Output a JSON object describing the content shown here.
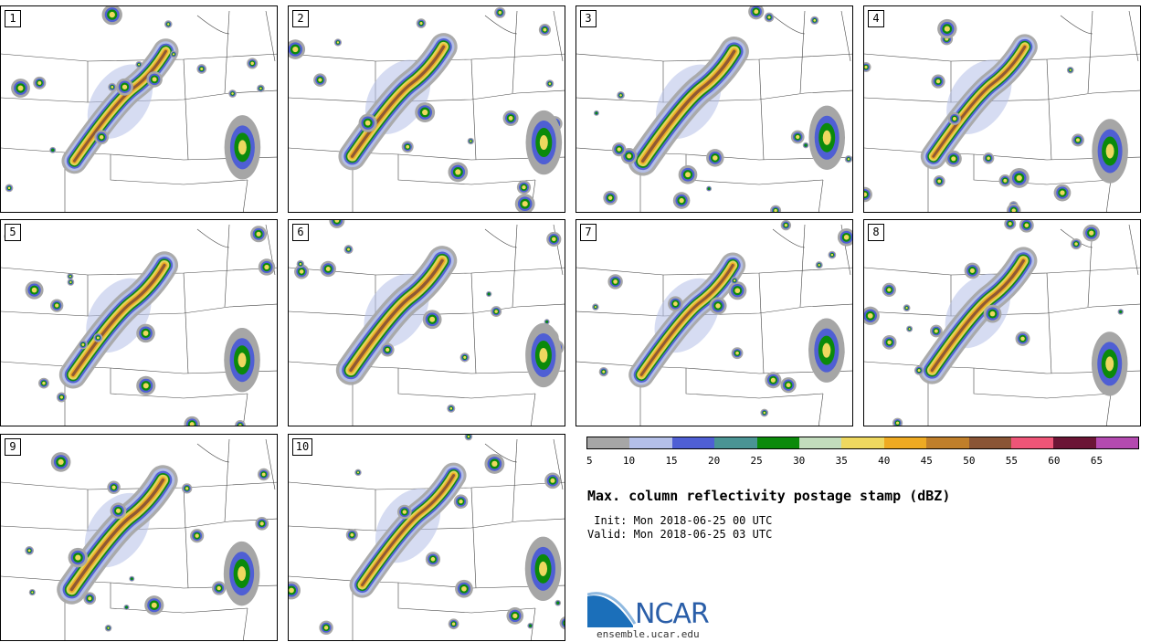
{
  "panels": [
    {
      "label": "1"
    },
    {
      "label": "2"
    },
    {
      "label": "3"
    },
    {
      "label": "4"
    },
    {
      "label": "5"
    },
    {
      "label": "6"
    },
    {
      "label": "7"
    },
    {
      "label": "8"
    },
    {
      "label": "9"
    },
    {
      "label": "10"
    }
  ],
  "legend": {
    "colors": [
      "#a6a6a6",
      "#b4bfe8",
      "#4f5fd4",
      "#4a9494",
      "#0b8a0b",
      "#c2dcbc",
      "#eed85f",
      "#eeaa22",
      "#c07f2a",
      "#8a5535",
      "#ee5577",
      "#6b1535",
      "#b44ab0"
    ],
    "ticks": [
      "5",
      "10",
      "15",
      "20",
      "25",
      "30",
      "35",
      "40",
      "45",
      "50",
      "55",
      "60",
      "65"
    ]
  },
  "title": "Max. column reflectivity postage stamp (dBZ)",
  "init": " Init: Mon 2018-06-25 00 UTC",
  "valid": "Valid: Mon 2018-06-25 03 UTC",
  "logo": {
    "text": "NCAR",
    "website": "ensemble.ucar.edu"
  }
}
